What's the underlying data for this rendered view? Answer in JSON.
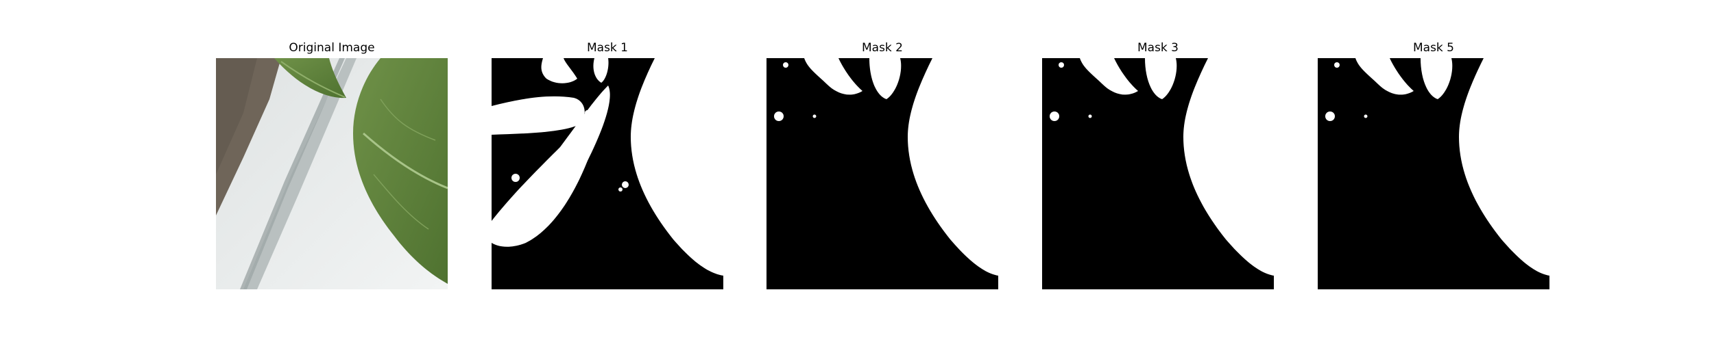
{
  "figure": {
    "panels": [
      {
        "title": "Original Image",
        "kind": "photo-leaf-on-white-surface"
      },
      {
        "title": "Mask 1",
        "kind": "binary-mask"
      },
      {
        "title": "Mask 2",
        "kind": "binary-mask"
      },
      {
        "title": "Mask 3",
        "kind": "binary-mask"
      },
      {
        "title": "Mask 5",
        "kind": "binary-mask"
      }
    ]
  },
  "colors": {
    "mask_foreground": "#ffffff",
    "mask_background": "#000000",
    "leaf_green": "#5b7f3c",
    "surface_white": "#e3e6e6",
    "soil_brown": "#6f6559"
  }
}
